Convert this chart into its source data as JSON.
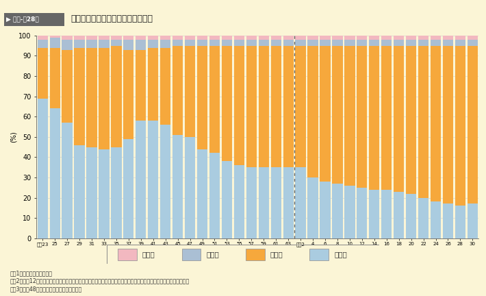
{
  "title": "車種別自動車保有台数構成率の推移",
  "header_label": "特集-第28図",
  "ylabel": "(%)",
  "bg_color": "#FBF5D6",
  "header_bg": "#B8A040",
  "header_label_bg": "#5A5A5A",
  "bar_colors": {
    "sonota": "#F2B8C0",
    "nirin": "#AABFD4",
    "joyosha": "#F6A83C",
    "kamotsu": "#AACCE0"
  },
  "legend_labels": [
    "その他",
    "二輪車",
    "乗用車",
    "貨物車"
  ],
  "notes": [
    "注　1　警察庁資料による。",
    "　　2　各年12月末現在の値である。保有台数には第１種及び第２種原動機付自転車並びに小型特殊自動車を含まない。",
    "　　3　昭和48年以前は、沖縄県を含まない。"
  ],
  "years_labels": [
    "昭和23",
    "25",
    "27",
    "29",
    "31",
    "33",
    "35",
    "37",
    "39",
    "41",
    "43",
    "45",
    "47",
    "49",
    "51",
    "53",
    "55",
    "57",
    "59",
    "61",
    "63",
    "平成2",
    "4",
    "6",
    "8",
    "10",
    "12",
    "14",
    "16",
    "18",
    "20",
    "22",
    "24",
    "26",
    "28",
    "30"
  ],
  "kamotsu": [
    69,
    64,
    57,
    46,
    45,
    44,
    45,
    49,
    58,
    58,
    56,
    51,
    50,
    44,
    42,
    38,
    36,
    35,
    35,
    35,
    35,
    35,
    30,
    28,
    27,
    26,
    25,
    24,
    24,
    23,
    22,
    20,
    18,
    17,
    16,
    17
  ],
  "joyosha": [
    25,
    30,
    36,
    48,
    49,
    50,
    50,
    44,
    35,
    36,
    38,
    44,
    45,
    51,
    53,
    57,
    59,
    60,
    60,
    60,
    60,
    60,
    65,
    67,
    68,
    69,
    70,
    71,
    71,
    72,
    73,
    75,
    77,
    78,
    79,
    78
  ],
  "nirin": [
    4,
    5,
    5,
    4,
    4,
    4,
    3,
    5,
    5,
    4,
    4,
    3,
    3,
    3,
    3,
    3,
    3,
    3,
    3,
    3,
    3,
    3,
    3,
    3,
    3,
    3,
    3,
    3,
    3,
    3,
    3,
    3,
    3,
    3,
    3,
    3
  ],
  "sonota": [
    2,
    1,
    2,
    2,
    2,
    2,
    2,
    2,
    2,
    2,
    2,
    2,
    2,
    2,
    2,
    2,
    2,
    2,
    2,
    2,
    2,
    2,
    2,
    2,
    2,
    2,
    2,
    2,
    2,
    2,
    2,
    2,
    2,
    2,
    2,
    2
  ]
}
